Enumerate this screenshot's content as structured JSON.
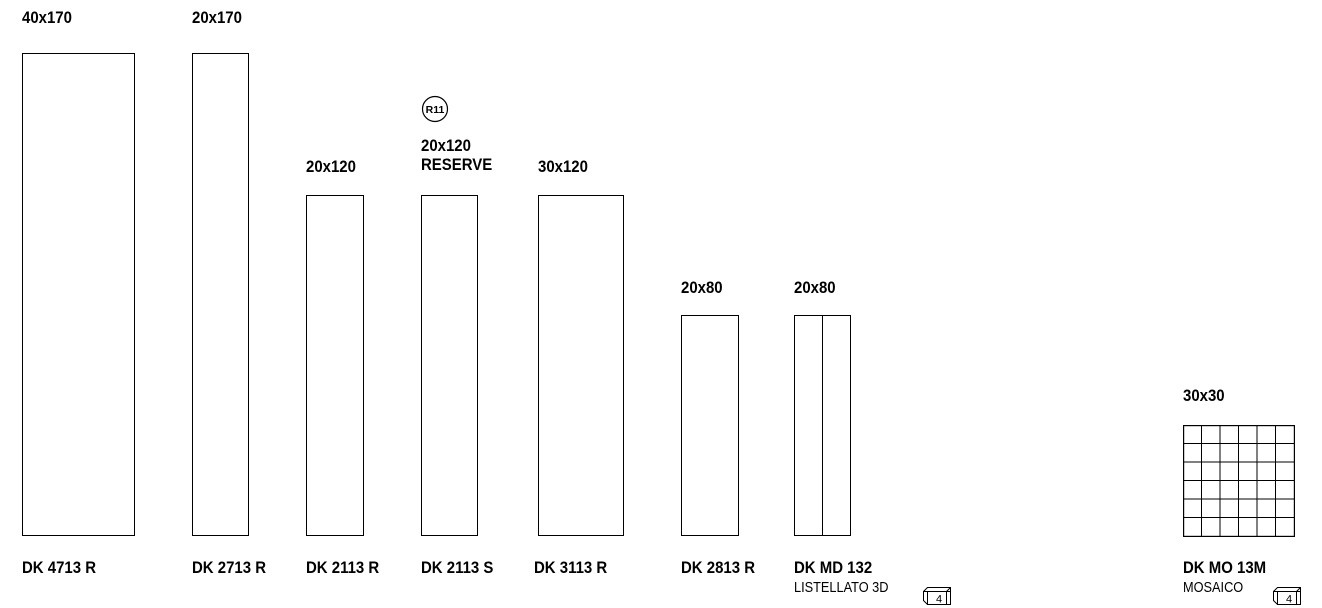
{
  "tiles": [
    {
      "size": "40x170",
      "code": "DK 4713 R"
    },
    {
      "size": "20x170",
      "code": "DK 2713 R"
    },
    {
      "size": "20x120",
      "code": "DK 2113 R"
    },
    {
      "size": "20x120\nRESERVE",
      "code": "DK 2113 S",
      "badge": "R11"
    },
    {
      "size": "30x120",
      "code": "DK 3113 R"
    },
    {
      "size": "20x80",
      "code": "DK 2813 R"
    },
    {
      "size": "20x80",
      "code": "DK MD 132",
      "subtitle": "LISTELLATO 3D",
      "pack_count": "4"
    },
    {
      "size": "30x30",
      "code": "DK MO 13M",
      "subtitle": "MOSAICO",
      "pack_count": "4"
    }
  ]
}
